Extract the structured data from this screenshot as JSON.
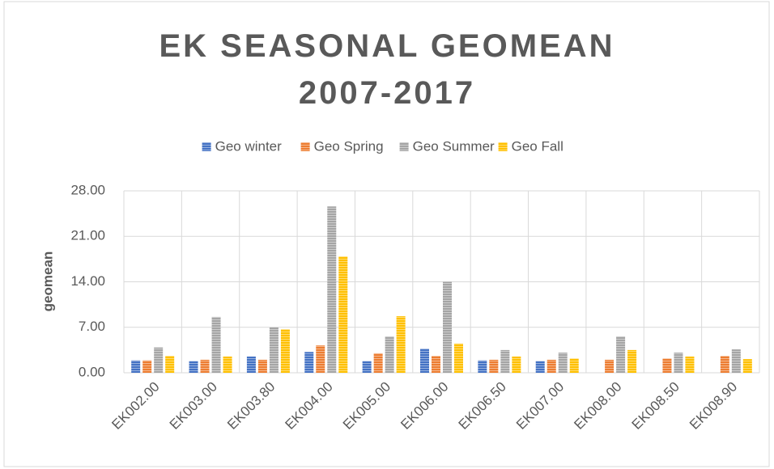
{
  "chart_data": {
    "type": "bar",
    "title": "EK SEASONAL GEOMEAN 2007-2017",
    "ylabel": "geomean",
    "categories": [
      "EK002.00",
      "EK003.00",
      "EK003.80",
      "EK004.00",
      "EK005.00",
      "EK006.00",
      "EK006.50",
      "EK007.00",
      "EK008.00",
      "EK008.50",
      "EK008.90"
    ],
    "series": [
      {
        "name": "Geo winter",
        "color": "#4472c4",
        "values": [
          1.9,
          1.8,
          2.5,
          3.2,
          1.8,
          3.7,
          1.9,
          1.8,
          null,
          null,
          null
        ]
      },
      {
        "name": "Geo Spring",
        "color": "#ed7d31",
        "values": [
          1.9,
          2.0,
          2.0,
          4.2,
          3.0,
          2.6,
          2.0,
          2.0,
          2.0,
          2.2,
          2.6
        ]
      },
      {
        "name": "Geo Summer",
        "color": "#a5a5a5",
        "values": [
          3.9,
          8.6,
          7.0,
          25.6,
          5.6,
          14.0,
          3.5,
          3.1,
          5.6,
          3.1,
          3.6
        ]
      },
      {
        "name": "Geo Fall",
        "color": "#ffc000",
        "values": [
          2.6,
          2.5,
          6.7,
          17.9,
          8.7,
          4.5,
          2.5,
          2.2,
          3.5,
          2.5,
          2.1
        ]
      }
    ],
    "ylim": [
      0,
      28
    ],
    "yticks": [
      {
        "value": 0,
        "label": "0.00"
      },
      {
        "value": 7,
        "label": "7.00"
      },
      {
        "value": 14,
        "label": "14.00"
      },
      {
        "value": 21,
        "label": "21.00"
      },
      {
        "value": 28,
        "label": "28.00"
      }
    ],
    "grid": true,
    "legend": "top"
  }
}
